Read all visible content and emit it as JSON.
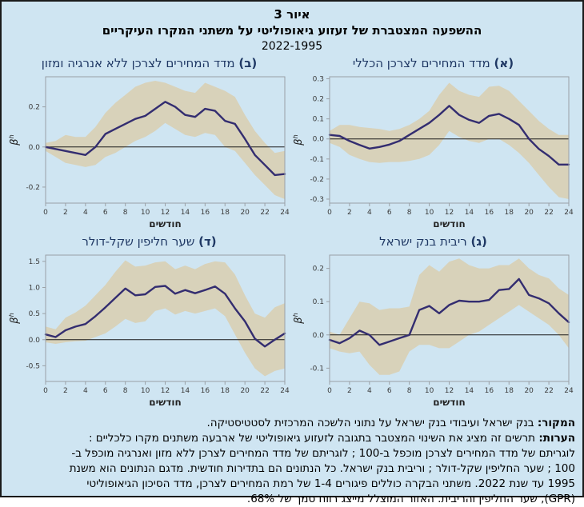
{
  "figure": {
    "label": "איור 3",
    "title": "ההשפעה המצטברת של זעזוע גיאופוליטי על משתני המקרו העיקריים",
    "period": "2022-1995"
  },
  "axis": {
    "xlabel": "חודשים",
    "ylabel_base": "β",
    "ylabel_sup": "h",
    "x_ticks": [
      0,
      2,
      4,
      6,
      8,
      10,
      12,
      14,
      16,
      18,
      20,
      22,
      24
    ]
  },
  "colors": {
    "page_background": "#cfe5f2",
    "band": "#d8d2ba",
    "line": "#332d70",
    "zero_line": "#1a1a1a",
    "plot_border": "#9aa0a6",
    "tick_text": "#3a3a3a",
    "panel_title": "#1f3864",
    "page_border": "#1a1a1a"
  },
  "chart_data": [
    {
      "id": "a",
      "prefix": "(א)",
      "title": "מדד המחירים לצרכן הכללי",
      "type": "line",
      "x": [
        0,
        1,
        2,
        3,
        4,
        5,
        6,
        7,
        8,
        9,
        10,
        11,
        12,
        13,
        14,
        15,
        16,
        17,
        18,
        19,
        20,
        21,
        22,
        23,
        24
      ],
      "ylim": [
        -0.32,
        0.31
      ],
      "y_ticks": [
        "0.3",
        "0.2",
        "0.1",
        "0.0",
        "-0.1",
        "-0.2",
        "-0.3"
      ],
      "band_note": "68% confidence band",
      "series": [
        {
          "name": "response",
          "values": [
            0.02,
            0.015,
            -0.01,
            -0.03,
            -0.048,
            -0.04,
            -0.028,
            -0.01,
            0.02,
            0.05,
            0.08,
            0.12,
            0.165,
            0.12,
            0.095,
            0.08,
            0.115,
            0.125,
            0.1,
            0.07,
            0.0,
            -0.05,
            -0.085,
            -0.128,
            -0.128
          ]
        },
        {
          "name": "ci68_upper",
          "values": [
            0.04,
            0.07,
            0.07,
            0.06,
            0.055,
            0.05,
            0.04,
            0.05,
            0.07,
            0.1,
            0.14,
            0.22,
            0.28,
            0.24,
            0.22,
            0.21,
            0.26,
            0.265,
            0.24,
            0.19,
            0.14,
            0.09,
            0.05,
            0.02,
            0.02
          ]
        },
        {
          "name": "ci68_lower",
          "values": [
            -0.02,
            -0.04,
            -0.08,
            -0.1,
            -0.115,
            -0.12,
            -0.115,
            -0.115,
            -0.11,
            -0.1,
            -0.08,
            -0.03,
            0.04,
            0.01,
            -0.01,
            -0.02,
            0.0,
            0.0,
            -0.03,
            -0.07,
            -0.12,
            -0.18,
            -0.24,
            -0.29,
            -0.3
          ]
        }
      ]
    },
    {
      "id": "b",
      "prefix": "(ב)",
      "title": "מדד המחירים לצרכן ללא אנרגיה ומזון",
      "type": "line",
      "x": [
        0,
        1,
        2,
        3,
        4,
        5,
        6,
        7,
        8,
        9,
        10,
        11,
        12,
        13,
        14,
        15,
        16,
        17,
        18,
        19,
        20,
        21,
        22,
        23,
        24
      ],
      "ylim": [
        -0.28,
        0.35
      ],
      "y_ticks": [
        "0.2",
        "0.0",
        "-0.2"
      ],
      "band_note": "68% confidence band",
      "series": [
        {
          "name": "response",
          "values": [
            0.0,
            -0.01,
            -0.02,
            -0.03,
            -0.04,
            0.0,
            0.065,
            0.09,
            0.115,
            0.14,
            0.155,
            0.19,
            0.225,
            0.2,
            0.16,
            0.15,
            0.19,
            0.18,
            0.13,
            0.115,
            0.04,
            -0.04,
            -0.09,
            -0.14,
            -0.135
          ]
        },
        {
          "name": "ci68_upper",
          "values": [
            0.02,
            0.03,
            0.06,
            0.05,
            0.05,
            0.1,
            0.17,
            0.22,
            0.26,
            0.3,
            0.32,
            0.33,
            0.32,
            0.3,
            0.28,
            0.27,
            0.32,
            0.3,
            0.28,
            0.25,
            0.16,
            0.08,
            0.02,
            -0.03,
            -0.02
          ]
        },
        {
          "name": "ci68_lower",
          "values": [
            -0.02,
            -0.05,
            -0.08,
            -0.09,
            -0.1,
            -0.09,
            -0.05,
            -0.03,
            0.0,
            0.03,
            0.05,
            0.08,
            0.12,
            0.09,
            0.06,
            0.05,
            0.07,
            0.06,
            0.0,
            -0.02,
            -0.08,
            -0.14,
            -0.19,
            -0.24,
            -0.26
          ]
        }
      ]
    },
    {
      "id": "c",
      "prefix": "(ג)",
      "title": "ריבית בנק ישראל",
      "type": "line",
      "x": [
        0,
        1,
        2,
        3,
        4,
        5,
        6,
        7,
        8,
        9,
        10,
        11,
        12,
        13,
        14,
        15,
        16,
        17,
        18,
        19,
        20,
        21,
        22,
        23,
        24
      ],
      "ylim": [
        -0.14,
        0.24
      ],
      "y_ticks": [
        "0.2",
        "0.1",
        "0.0",
        "-0.1"
      ],
      "band_note": "68% confidence band",
      "series": [
        {
          "name": "response",
          "values": [
            -0.015,
            -0.025,
            -0.01,
            0.013,
            0.0,
            -0.03,
            -0.02,
            -0.01,
            0.0,
            0.075,
            0.087,
            0.065,
            0.09,
            0.103,
            0.1,
            0.1,
            0.105,
            0.135,
            0.138,
            0.168,
            0.12,
            0.11,
            0.095,
            0.065,
            0.038
          ]
        },
        {
          "name": "ci68_upper",
          "values": [
            0.01,
            0.0,
            0.05,
            0.1,
            0.095,
            0.075,
            0.08,
            0.08,
            0.085,
            0.18,
            0.21,
            0.19,
            0.22,
            0.23,
            0.21,
            0.2,
            0.2,
            0.21,
            0.21,
            0.23,
            0.2,
            0.18,
            0.17,
            0.14,
            0.12
          ]
        },
        {
          "name": "ci68_lower",
          "values": [
            -0.04,
            -0.05,
            -0.055,
            -0.05,
            -0.09,
            -0.12,
            -0.12,
            -0.11,
            -0.05,
            -0.03,
            -0.03,
            -0.04,
            -0.04,
            -0.02,
            0.0,
            0.01,
            0.03,
            0.05,
            0.07,
            0.09,
            0.07,
            0.05,
            0.03,
            0.0,
            -0.04
          ]
        }
      ]
    },
    {
      "id": "d",
      "prefix": "(ד)",
      "title": "שער חליפין שקל-דולר",
      "type": "line",
      "x": [
        0,
        1,
        2,
        3,
        4,
        5,
        6,
        7,
        8,
        9,
        10,
        11,
        12,
        13,
        14,
        15,
        16,
        17,
        18,
        19,
        20,
        21,
        22,
        23,
        24
      ],
      "ylim": [
        -0.8,
        1.62
      ],
      "y_ticks": [
        "1.5",
        "1.0",
        "0.5",
        "0.0",
        "-0.5"
      ],
      "band_note": "68% confidence band",
      "series": [
        {
          "name": "response",
          "values": [
            0.1,
            0.05,
            0.18,
            0.25,
            0.3,
            0.45,
            0.62,
            0.8,
            0.98,
            0.85,
            0.87,
            1.01,
            1.03,
            0.88,
            0.95,
            0.89,
            0.95,
            1.02,
            0.88,
            0.6,
            0.35,
            0.02,
            -0.13,
            0.0,
            0.12
          ]
        },
        {
          "name": "ci68_upper",
          "values": [
            0.25,
            0.2,
            0.42,
            0.52,
            0.65,
            0.85,
            1.05,
            1.3,
            1.52,
            1.4,
            1.42,
            1.48,
            1.5,
            1.35,
            1.42,
            1.35,
            1.45,
            1.5,
            1.48,
            1.25,
            0.85,
            0.5,
            0.42,
            0.62,
            0.7
          ]
        },
        {
          "name": "ci68_lower",
          "values": [
            -0.05,
            -0.08,
            -0.05,
            -0.03,
            -0.02,
            0.05,
            0.12,
            0.25,
            0.4,
            0.32,
            0.35,
            0.55,
            0.6,
            0.48,
            0.55,
            0.5,
            0.55,
            0.6,
            0.45,
            0.1,
            -0.25,
            -0.55,
            -0.7,
            -0.6,
            -0.55
          ]
        }
      ]
    }
  ],
  "footer": {
    "source_label": "המקור:",
    "source_text": "בנק ישראל ועיבודי בנק ישראל על נתוני הלשכה המרכזית לסטטיסטיקה.",
    "notes_label": "הערות:",
    "notes_lines": [
      "תרשים זה מציג את השינוי המצטבר בתגובה לזעזוע גיאופוליטי של ארבעה משתנים מקרו כלכליים :",
      "לוגריתם של מדד המחירים לצרכן מוכפל ב-100 ; לוגריתם של מדד המחירים לצרכן ללא מזון ואנרגיה מוכפל ב-",
      "100 ; שער החליפין שקל-דולר ; וריבית בנק ישראל. כל הנתונים הם בתדירות חודשית. מדגם הנתונים הוא משנת",
      "1995 עד שנת 2022. משתני הבקרה כוללים פיגורים 1-4 של רמת המחירים לצרכן, מדד הסיכון הגיאופוליטי",
      "(GPR), שער החליפין והריבית. האזור המוצלל מייצג רווח סמך של 68%."
    ]
  }
}
